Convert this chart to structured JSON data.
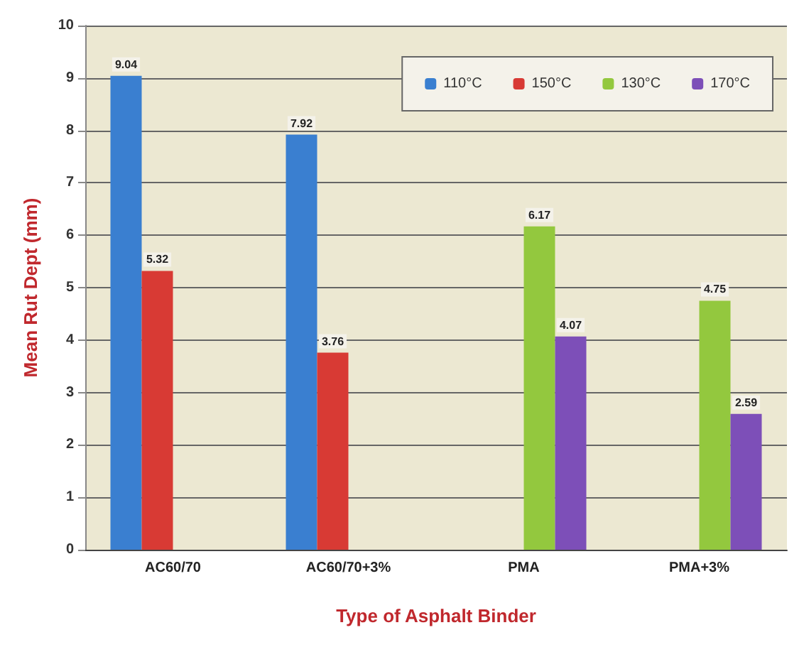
{
  "chart_data": {
    "type": "bar",
    "xlabel": "Type of Asphalt Binder",
    "ylabel": "Mean Rut Dept (mm)",
    "categories": [
      "AC60/70",
      "AC60/70+3%",
      "PMA",
      "PMA+3%"
    ],
    "series": [
      {
        "name": "110°C",
        "color": "#3a7fd0",
        "values": [
          9.04,
          7.92,
          null,
          null
        ]
      },
      {
        "name": "150°C",
        "color": "#d83a34",
        "values": [
          5.32,
          3.76,
          null,
          null
        ]
      },
      {
        "name": "130°C",
        "color": "#93c83e",
        "values": [
          null,
          null,
          6.17,
          4.75
        ]
      },
      {
        "name": "170°C",
        "color": "#7d4fb8",
        "values": [
          null,
          null,
          4.07,
          2.59
        ]
      }
    ],
    "ylim": [
      0,
      10
    ],
    "yticks": [
      0,
      1,
      2,
      3,
      4,
      5,
      6,
      7,
      8,
      9,
      10
    ],
    "grid": "y",
    "legend": "top right",
    "data_labels": true
  }
}
